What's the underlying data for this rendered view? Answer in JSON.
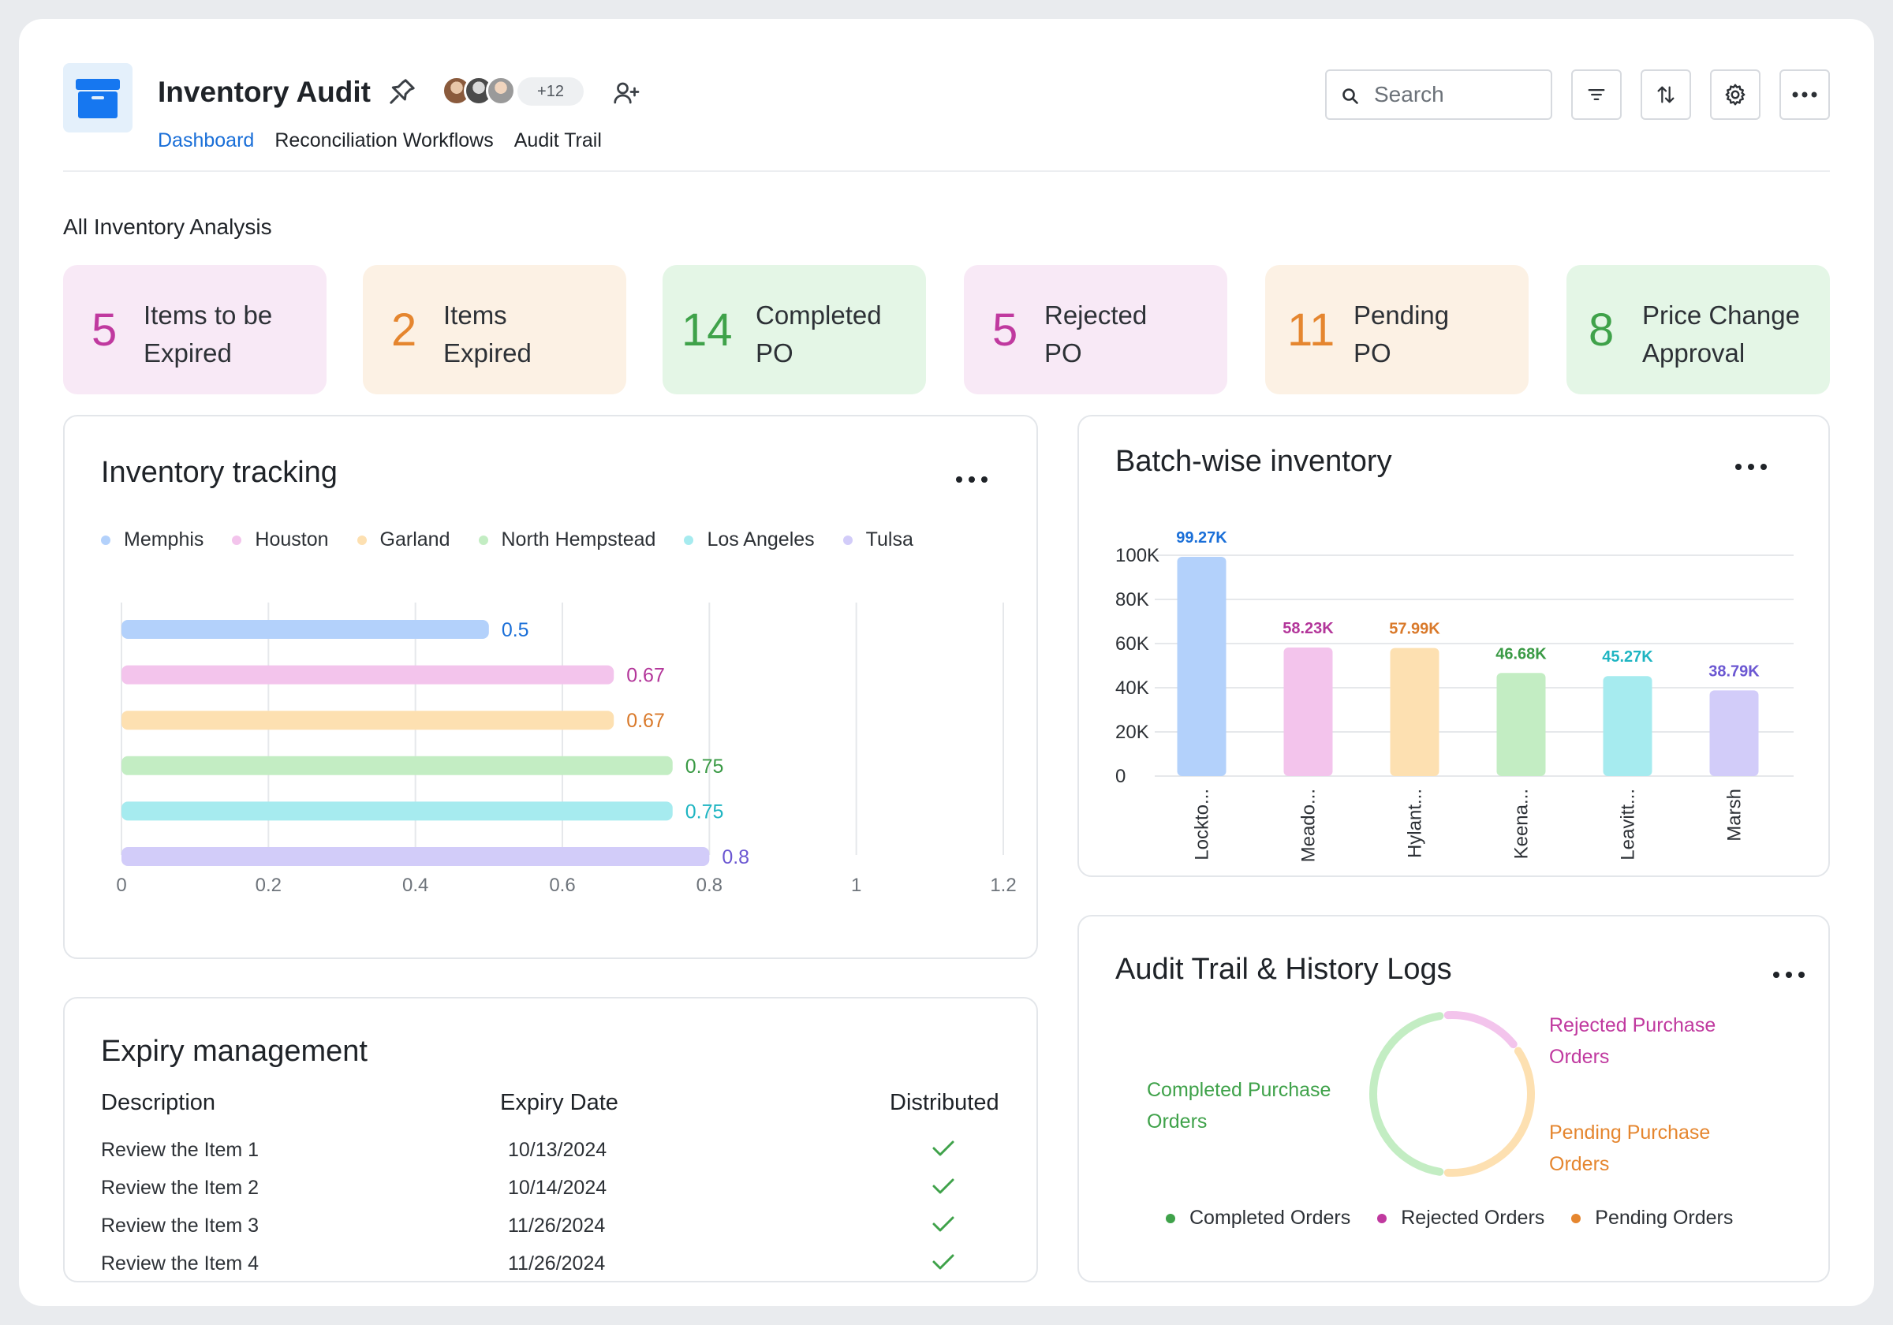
{
  "header": {
    "title": "Inventory Audit",
    "avatar_extra_count": "+12",
    "tabs": [
      {
        "label": "Dashboard",
        "active": true
      },
      {
        "label": "Reconciliation Workflows",
        "active": false
      },
      {
        "label": "Audit Trail",
        "active": false
      }
    ],
    "search_placeholder": "Search",
    "toolbar_icons": [
      "filter-icon",
      "sort-icon",
      "gear-icon",
      "more-icon"
    ],
    "accent_color": "#1a6fd8"
  },
  "section_title": "All Inventory Analysis",
  "kpis": [
    {
      "value": "5",
      "label": "Items to be\nExpired",
      "bg": "#f8e9f6",
      "color": "#c0399f"
    },
    {
      "value": "2",
      "label": "Items\nExpired",
      "bg": "#fcf1e4",
      "color": "#e5862f"
    },
    {
      "value": "14",
      "label": "Completed\nPO",
      "bg": "#e4f6e6",
      "color": "#3fa24a"
    },
    {
      "value": "5",
      "label": "Rejected\nPO",
      "bg": "#f8e9f6",
      "color": "#c0399f"
    },
    {
      "value": "11",
      "label": "Pending\nPO",
      "bg": "#fcf1e4",
      "color": "#e5862f"
    },
    {
      "value": "8",
      "label": "Price Change\nApproval",
      "bg": "#e4f6e6",
      "color": "#3fa24a"
    }
  ],
  "inventory_tracking": {
    "title": "Inventory tracking",
    "chart_data": {
      "type": "bar",
      "orientation": "horizontal",
      "categories": [
        "Memphis",
        "Houston",
        "Garland",
        "North Hempstead",
        "Los Angeles",
        "Tulsa"
      ],
      "values": [
        0.5,
        0.67,
        0.67,
        0.75,
        0.75,
        0.8
      ],
      "value_labels": [
        "0.5",
        "0.67",
        "0.67",
        "0.75",
        "0.75",
        "0.8"
      ],
      "colors": [
        "#b3d1fb",
        "#f3c4ec",
        "#fde0b1",
        "#c3edc3",
        "#a6ebef",
        "#d2ccf9"
      ],
      "label_colors": [
        "#1a6fd8",
        "#b3369a",
        "#d9792a",
        "#3a9a45",
        "#1fb5c2",
        "#6b57d2"
      ],
      "xlim": [
        0,
        1.2
      ],
      "xticks": [
        "0",
        "0.2",
        "0.4",
        "0.6",
        "0.8",
        "1",
        "1.2"
      ],
      "legend_position": "top",
      "grid": true
    }
  },
  "batch_inventory": {
    "title": "Batch-wise inventory",
    "chart_data": {
      "type": "bar",
      "categories": [
        "Lockto...",
        "Meado...",
        "Hylant...",
        "Keena...",
        "Leavitt...",
        "Marsh"
      ],
      "values": [
        99270,
        58230,
        57990,
        46680,
        45270,
        38790
      ],
      "value_labels": [
        "99.27K",
        "58.23K",
        "57.99K",
        "46.68K",
        "45.27K",
        "38.79K"
      ],
      "colors": [
        "#b3d1fb",
        "#f3c4ec",
        "#fde0b1",
        "#c3edc3",
        "#a6ebef",
        "#d2ccf9"
      ],
      "label_colors": [
        "#1a6fd8",
        "#b3369a",
        "#d9792a",
        "#3a9a45",
        "#1fb5c2",
        "#6b57d2"
      ],
      "ylim": [
        0,
        100000
      ],
      "yticks": [
        "0",
        "20K",
        "40K",
        "60K",
        "80K",
        "100K"
      ],
      "grid": true
    }
  },
  "expiry": {
    "title": "Expiry management",
    "columns": [
      "Description",
      "Expiry Date",
      "Distributed"
    ],
    "rows": [
      {
        "description": "Review the Item 1",
        "date": "10/13/2024",
        "distributed": true
      },
      {
        "description": "Review the Item 2",
        "date": "10/14/2024",
        "distributed": true
      },
      {
        "description": "Review the Item 3",
        "date": "11/26/2024",
        "distributed": true
      },
      {
        "description": "Review the Item 4",
        "date": "11/26/2024",
        "distributed": true
      }
    ]
  },
  "audit_logs": {
    "title": "Audit Trail & History Logs",
    "chart_data": {
      "type": "pie",
      "style": "donut",
      "slices": [
        {
          "label": "Completed Purchase\nOrders",
          "legend": "Completed Orders",
          "value": 14,
          "color": "#c3edc3",
          "text_color": "#3fa24a",
          "dot": "#3fa24a"
        },
        {
          "label": "Rejected Purchase\nOrders",
          "legend": "Rejected Orders",
          "value": 5,
          "color": "#f3c4ec",
          "text_color": "#c0399f",
          "dot": "#c0399f"
        },
        {
          "label": "Pending Purchase\nOrders",
          "legend": "Pending Orders",
          "value": 11,
          "color": "#fde0b1",
          "text_color": "#e5862f",
          "dot": "#e5862f"
        }
      ],
      "legend_position": "bottom"
    }
  }
}
